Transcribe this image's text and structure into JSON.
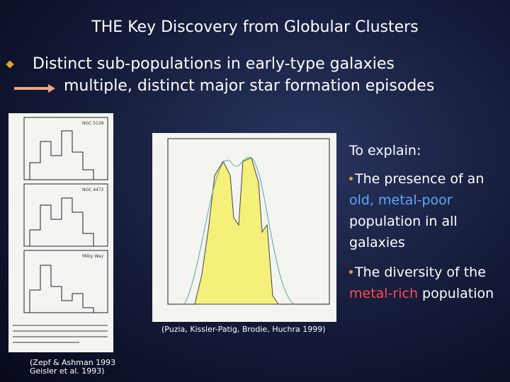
{
  "title": "THE Key Discovery from Globular Clusters",
  "bullet": {
    "text": "Distinct sub-populations in early-type galaxies",
    "consequence": "multiple, distinct major star formation episodes"
  },
  "left_figure": {
    "panels": [
      "NGC 5128",
      "NGC 4472",
      "Milky Way"
    ],
    "caption": [
      "(Zepf & Ashman 1993",
      "Geisler et al. 1993)"
    ]
  },
  "right_figure": {
    "caption": "(Puzia, Kissler-Patig, Brodie, Huchra 1999)"
  },
  "explanation": {
    "heading": "To explain:",
    "points": [
      [
        {
          "text": "The presence of an "
        },
        {
          "text": "old, metal-poor",
          "color": "#5aa9ff"
        },
        {
          "text": " population in all galaxies"
        }
      ],
      [
        {
          "text": "The diversity of the "
        },
        {
          "text": "metal-rich",
          "color": "#ff4a4a"
        },
        {
          "text": " population"
        }
      ]
    ]
  }
}
